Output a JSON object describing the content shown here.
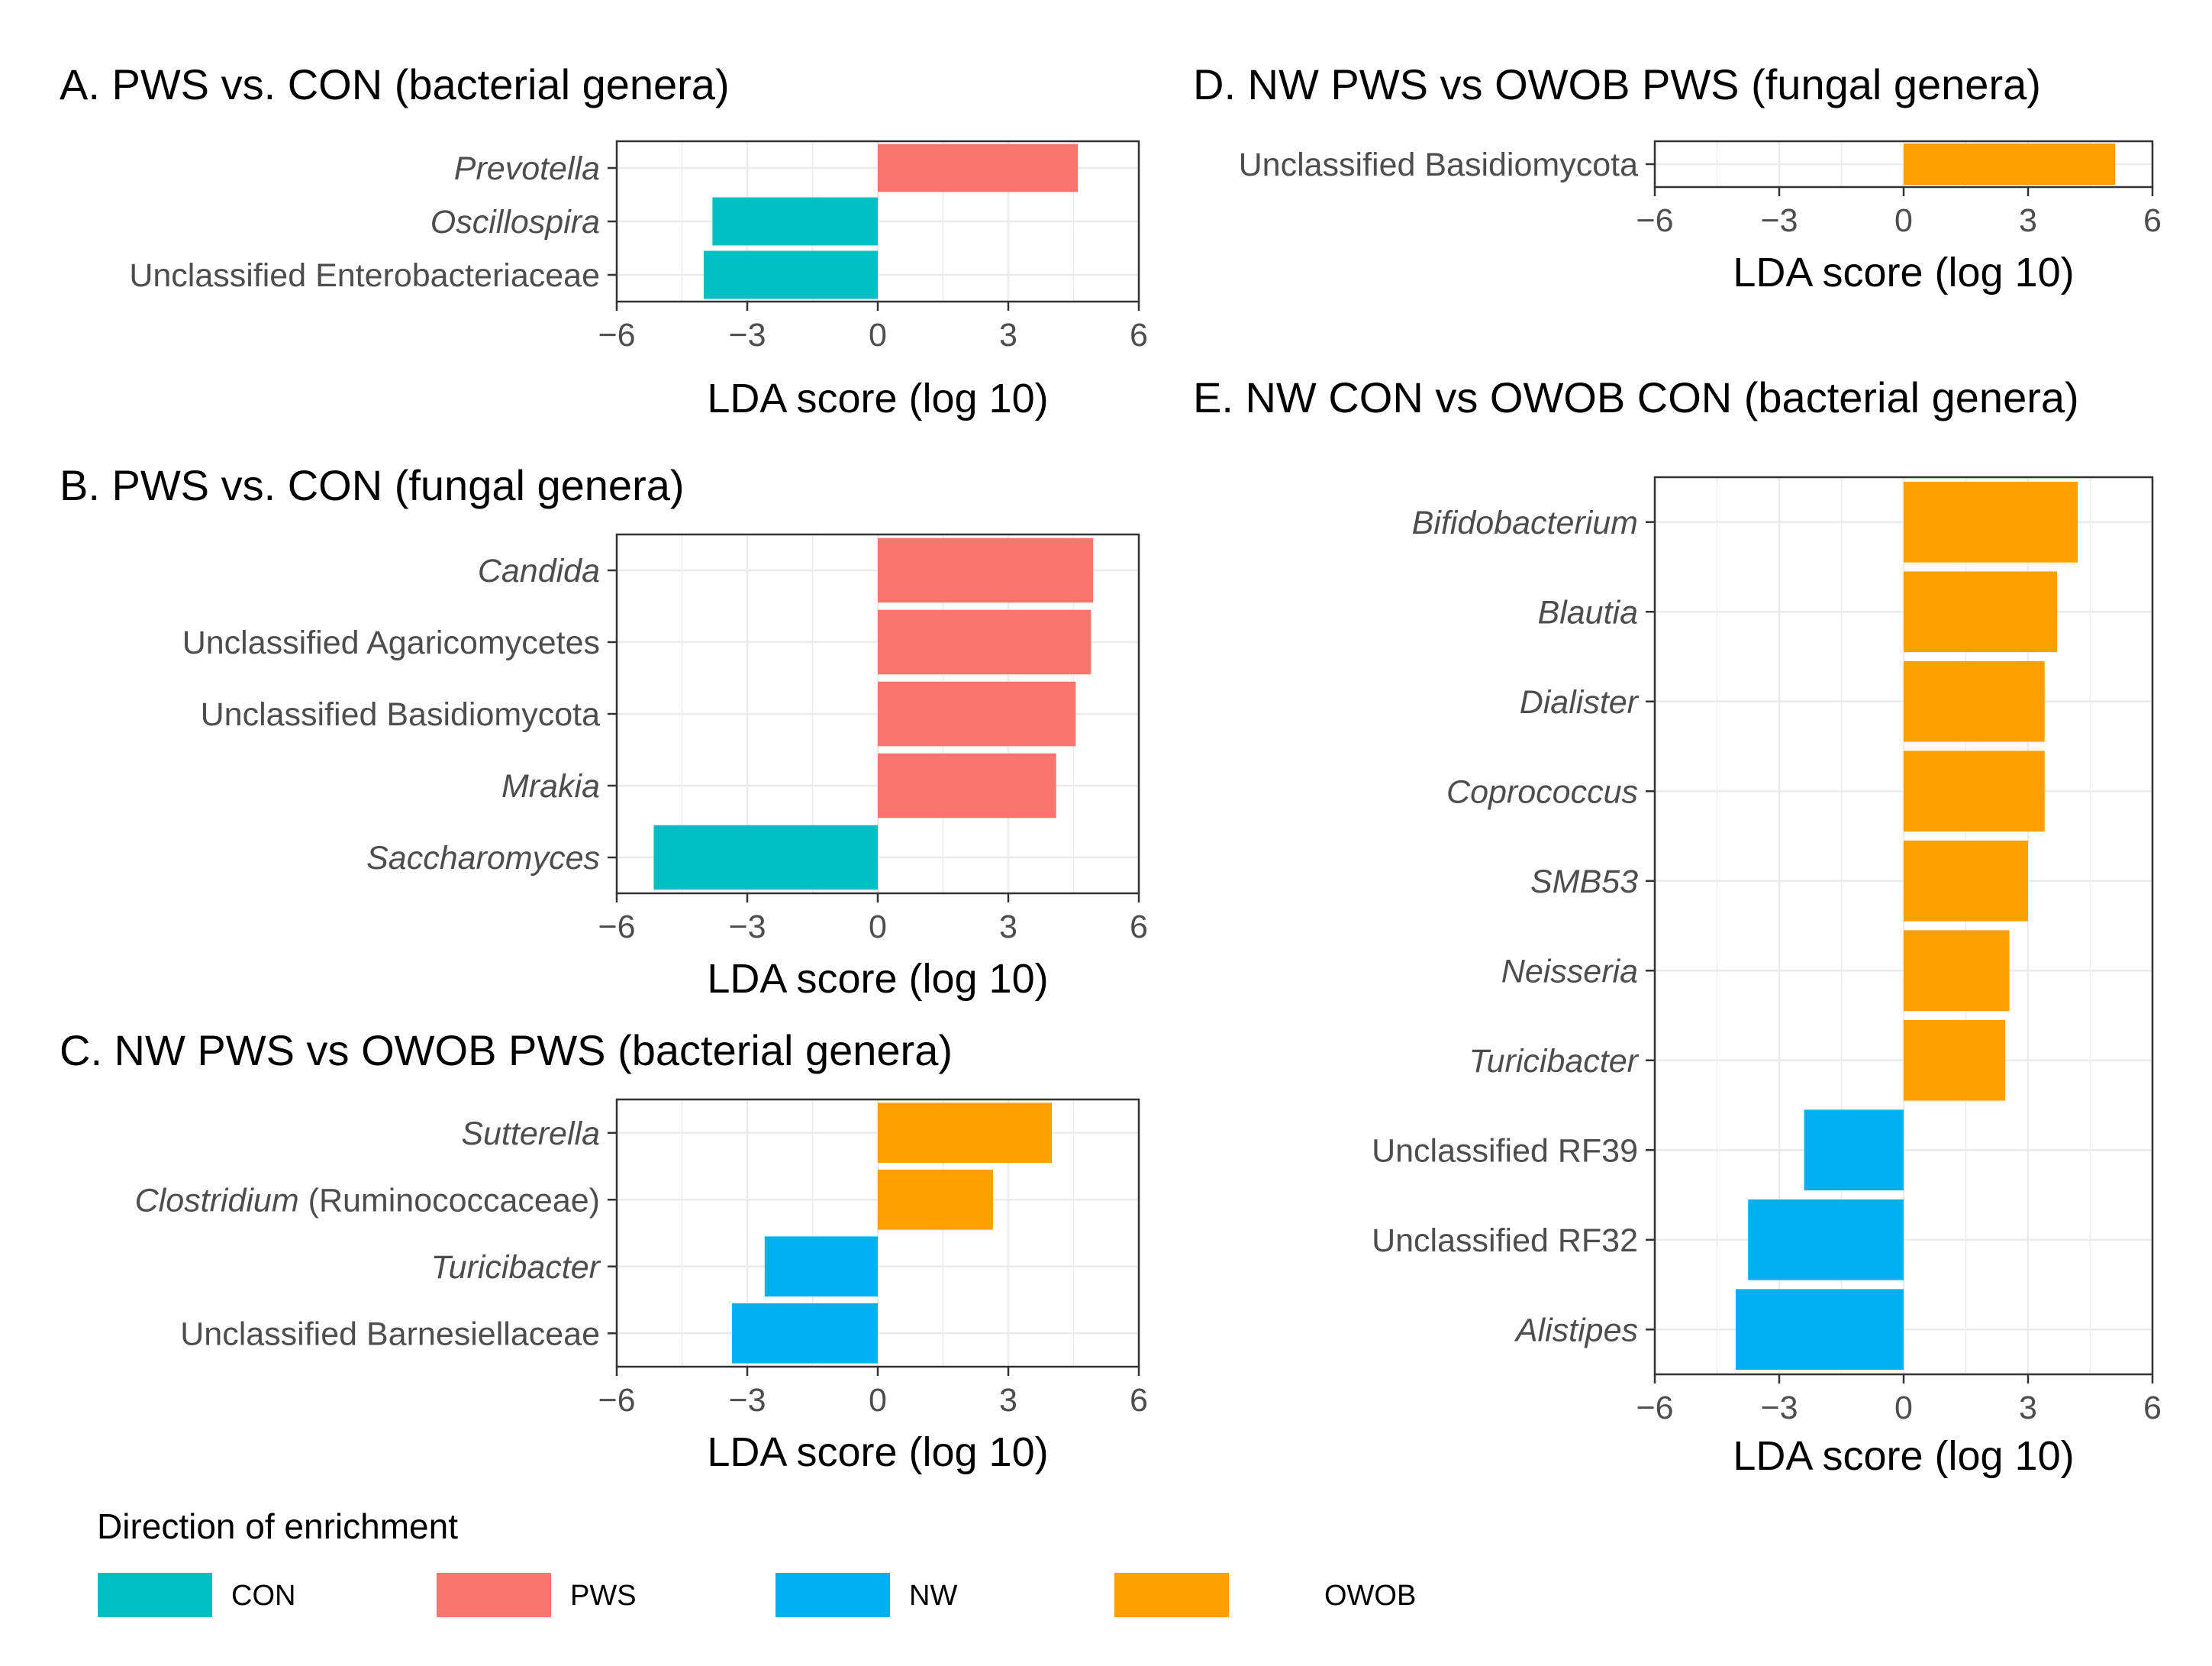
{
  "colors": {
    "CON": "#00bfc4",
    "PWS": "#f8766d",
    "NW": "#00b0f0",
    "OWOB": "#ffa000",
    "grid": "#ebebeb",
    "frame": "#333333"
  },
  "legend": {
    "title": "Direction of enrichment",
    "items": [
      {
        "name": "CON",
        "color": "#00bfc4"
      },
      {
        "name": "PWS",
        "color": "#f8766d"
      },
      {
        "name": "NW",
        "color": "#00b0f0"
      },
      {
        "name": "OWOB",
        "color": "#ffa000"
      }
    ]
  },
  "chart_data": [
    {
      "id": "A",
      "type": "bar",
      "orientation": "horizontal",
      "title": "A. PWS vs. CON (bacterial genera)",
      "xlabel": "LDA score (log 10)",
      "ylabel": "",
      "xlim": [
        -6,
        6
      ],
      "xticks": [
        -6,
        -3,
        0,
        3,
        6
      ],
      "xtick_labels": [
        "−6",
        "−3",
        "0",
        "3",
        "6"
      ],
      "grid": true,
      "categories": [
        {
          "segments": [
            {
              "text": "Prevotella",
              "italic": true
            }
          ],
          "value": 4.6,
          "group": "PWS"
        },
        {
          "segments": [
            {
              "text": "Oscillospira",
              "italic": true
            }
          ],
          "value": -3.8,
          "group": "CON"
        },
        {
          "segments": [
            {
              "text": "Unclassified Enterobacteriaceae",
              "italic": false
            }
          ],
          "value": -4.0,
          "group": "CON"
        }
      ]
    },
    {
      "id": "B",
      "type": "bar",
      "orientation": "horizontal",
      "title": "B. PWS vs. CON (fungal genera)",
      "xlabel": "LDA score (log 10)",
      "ylabel": "",
      "xlim": [
        -6,
        6
      ],
      "xticks": [
        -6,
        -3,
        0,
        3,
        6
      ],
      "xtick_labels": [
        "−6",
        "−3",
        "0",
        "3",
        "6"
      ],
      "grid": true,
      "categories": [
        {
          "segments": [
            {
              "text": "Candida",
              "italic": true
            }
          ],
          "value": 4.95,
          "group": "PWS"
        },
        {
          "segments": [
            {
              "text": "Unclassified Agaricomycetes",
              "italic": false
            }
          ],
          "value": 4.9,
          "group": "PWS"
        },
        {
          "segments": [
            {
              "text": "Unclassified Basidiomycota",
              "italic": false
            }
          ],
          "value": 4.55,
          "group": "PWS"
        },
        {
          "segments": [
            {
              "text": "Mrakia",
              "italic": true
            }
          ],
          "value": 4.1,
          "group": "PWS"
        },
        {
          "segments": [
            {
              "text": "Saccharomyces",
              "italic": true
            }
          ],
          "value": -5.15,
          "group": "CON"
        }
      ]
    },
    {
      "id": "C",
      "type": "bar",
      "orientation": "horizontal",
      "title": "C. NW PWS vs OWOB PWS (bacterial genera)",
      "xlabel": "LDA score (log 10)",
      "ylabel": "",
      "xlim": [
        -6,
        6
      ],
      "xticks": [
        -6,
        -3,
        0,
        3,
        6
      ],
      "xtick_labels": [
        "−6",
        "−3",
        "0",
        "3",
        "6"
      ],
      "grid": true,
      "categories": [
        {
          "segments": [
            {
              "text": "Sutterella",
              "italic": true
            }
          ],
          "value": 4.0,
          "group": "OWOB"
        },
        {
          "segments": [
            {
              "text": "Clostridium",
              "italic": true
            },
            {
              "text": " (Ruminococcaceae)",
              "italic": false
            }
          ],
          "value": 2.65,
          "group": "OWOB"
        },
        {
          "segments": [
            {
              "text": "Turicibacter",
              "italic": true
            }
          ],
          "value": -2.6,
          "group": "NW"
        },
        {
          "segments": [
            {
              "text": "Unclassified Barnesiellaceae",
              "italic": false
            }
          ],
          "value": -3.35,
          "group": "NW"
        }
      ]
    },
    {
      "id": "D",
      "type": "bar",
      "orientation": "horizontal",
      "title": "D. NW PWS vs OWOB PWS (fungal genera)",
      "xlabel": "LDA score (log 10)",
      "ylabel": "",
      "xlim": [
        -6,
        6
      ],
      "xticks": [
        -6,
        -3,
        0,
        3,
        6
      ],
      "xtick_labels": [
        "−6",
        "−3",
        "0",
        "3",
        "6"
      ],
      "grid": true,
      "categories": [
        {
          "segments": [
            {
              "text": "Unclassified Basidiomycota",
              "italic": false
            }
          ],
          "value": 5.1,
          "group": "OWOB"
        }
      ]
    },
    {
      "id": "E",
      "type": "bar",
      "orientation": "horizontal",
      "title": "E. NW CON vs OWOB CON (bacterial genera)",
      "xlabel": "LDA score (log 10)",
      "ylabel": "",
      "xlim": [
        -6,
        6
      ],
      "xticks": [
        -6,
        -3,
        0,
        3,
        6
      ],
      "xtick_labels": [
        "−6",
        "−3",
        "0",
        "3",
        "6"
      ],
      "grid": true,
      "categories": [
        {
          "segments": [
            {
              "text": "Bifidobacterium",
              "italic": true
            }
          ],
          "value": 4.2,
          "group": "OWOB"
        },
        {
          "segments": [
            {
              "text": "Blautia",
              "italic": true
            }
          ],
          "value": 3.7,
          "group": "OWOB"
        },
        {
          "segments": [
            {
              "text": "Dialister",
              "italic": true
            }
          ],
          "value": 3.4,
          "group": "OWOB"
        },
        {
          "segments": [
            {
              "text": "Coprococcus",
              "italic": true
            }
          ],
          "value": 3.4,
          "group": "OWOB"
        },
        {
          "segments": [
            {
              "text": "SMB53",
              "italic": true
            }
          ],
          "value": 3.0,
          "group": "OWOB"
        },
        {
          "segments": [
            {
              "text": "Neisseria",
              "italic": true
            }
          ],
          "value": 2.55,
          "group": "OWOB"
        },
        {
          "segments": [
            {
              "text": "Turicibacter",
              "italic": true
            }
          ],
          "value": 2.45,
          "group": "OWOB"
        },
        {
          "segments": [
            {
              "text": "Unclassified RF39",
              "italic": false
            }
          ],
          "value": -2.4,
          "group": "NW"
        },
        {
          "segments": [
            {
              "text": "Unclassified RF32",
              "italic": false
            }
          ],
          "value": -3.75,
          "group": "NW"
        },
        {
          "segments": [
            {
              "text": "Alistipes",
              "italic": true
            }
          ],
          "value": -4.05,
          "group": "NW"
        }
      ]
    }
  ]
}
